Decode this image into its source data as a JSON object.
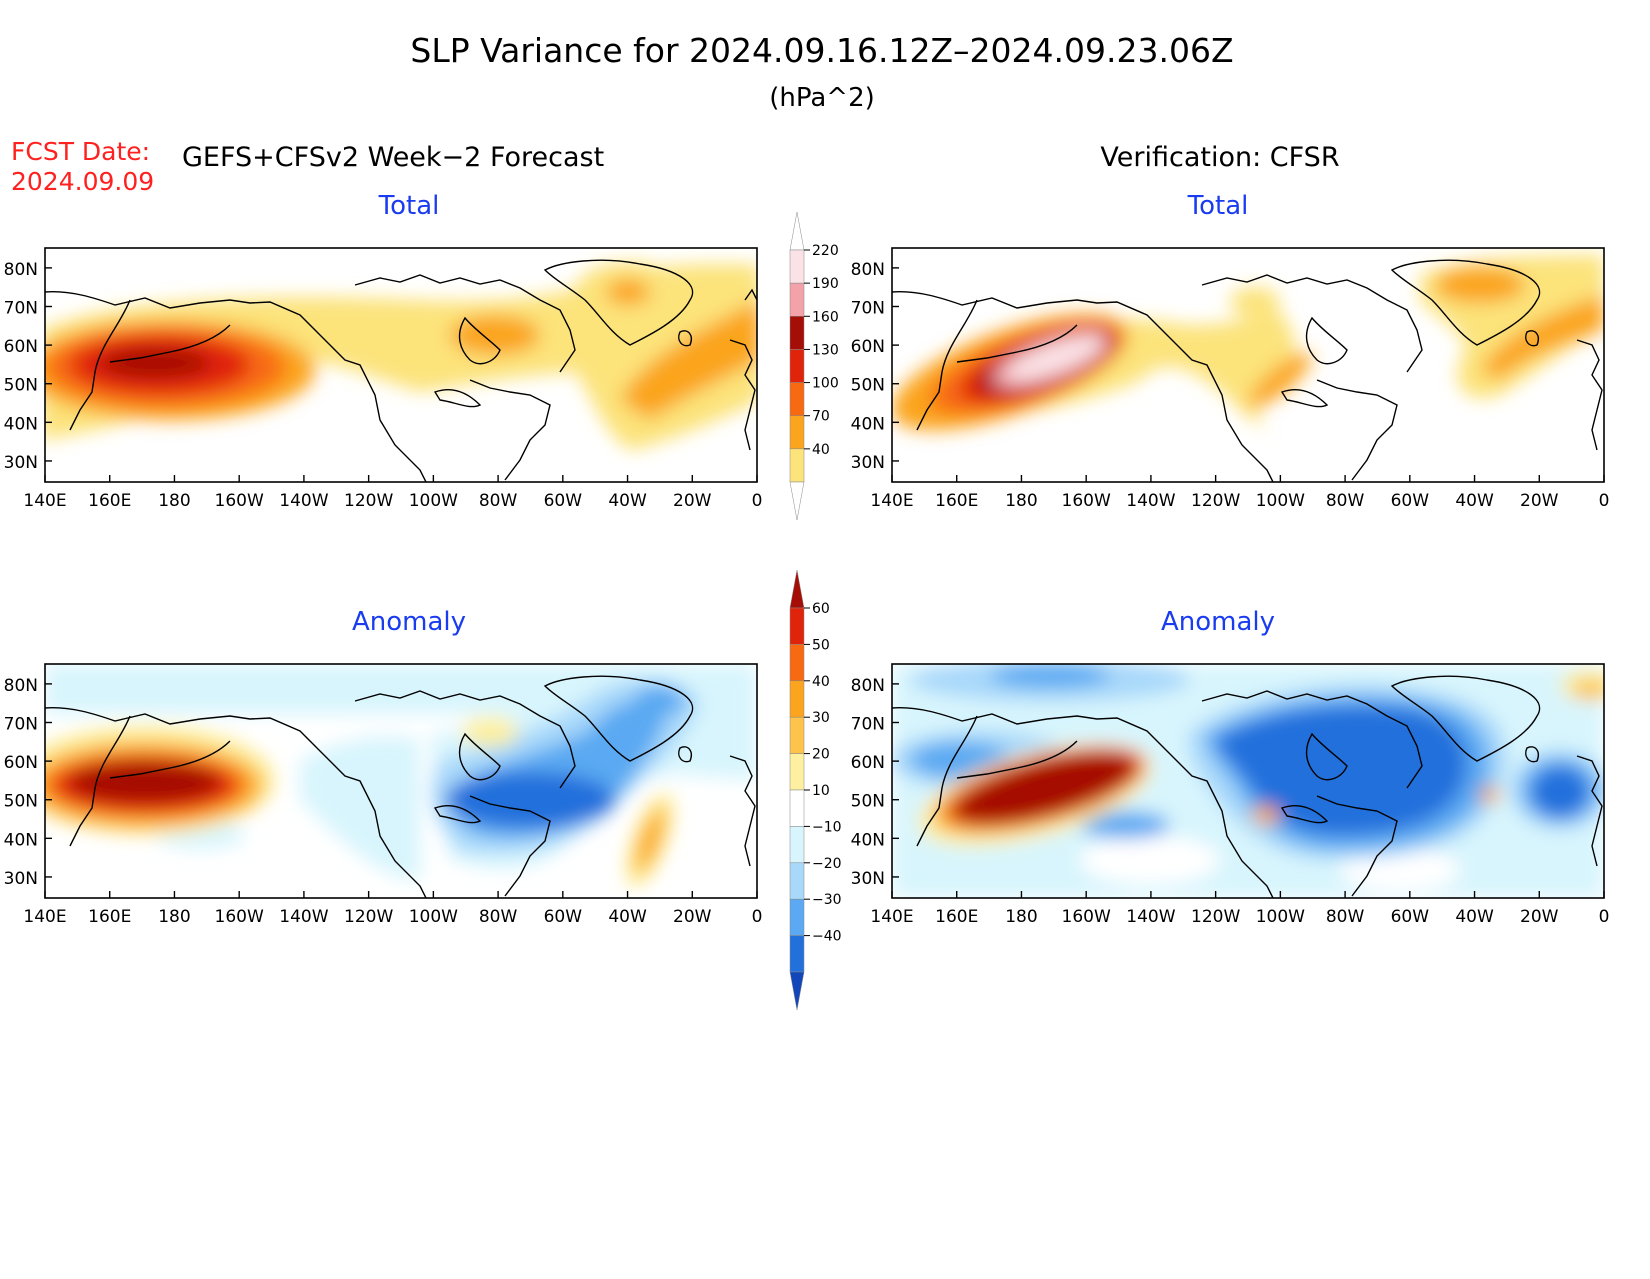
{
  "title": "SLP Variance for 2024.09.16.12Z–2024.09.23.06Z",
  "units": "(hPa^2)",
  "fcst_date": {
    "label": "FCST Date:",
    "value": "2024.09.09"
  },
  "left_header": "GEFS+CFSv2 Week−2 Forecast",
  "right_header": "Verification: CFSR",
  "panels": {
    "total_fcst": {
      "title": "Total"
    },
    "total_verif": {
      "title": "Total"
    },
    "anom_fcst": {
      "title": "Anomaly"
    },
    "anom_verif": {
      "title": "Anomaly"
    }
  },
  "axis": {
    "lat_labels": [
      "80N",
      "70N",
      "60N",
      "50N",
      "40N",
      "30N"
    ],
    "lon_labels": [
      "140E",
      "160E",
      "180",
      "160W",
      "140W",
      "120W",
      "100W",
      "80W",
      "60W",
      "40W",
      "20W",
      "0"
    ]
  },
  "total_colorbar": {
    "levels": [
      "40",
      "70",
      "100",
      "130",
      "160",
      "190",
      "220"
    ],
    "colors": [
      "#fce37a",
      "#fba41e",
      "#f86a12",
      "#e0240c",
      "#a50e06",
      "#f2a2a8",
      "#fbe2e6"
    ]
  },
  "anomaly_colorbar": {
    "levels": [
      "60",
      "50",
      "40",
      "30",
      "20",
      "10",
      "−10",
      "−20",
      "−30",
      "−40"
    ],
    "colors": [
      "#a50e06",
      "#e0240c",
      "#f86a12",
      "#fba41e",
      "#fdc34a",
      "#fdf0a0",
      "#ffffff",
      "#d8f5fd",
      "#a8d8fa",
      "#5aa9f2",
      "#2270dc",
      "#1346b8"
    ]
  }
}
